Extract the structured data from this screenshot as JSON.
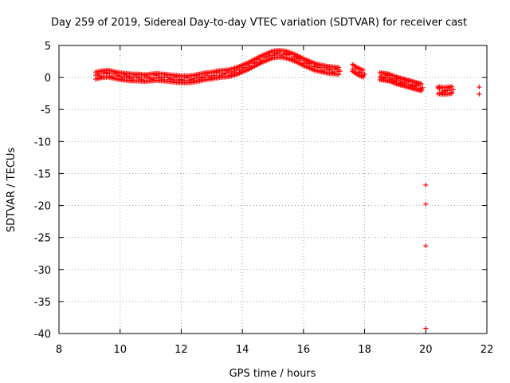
{
  "colors": {
    "series": "#ff0000",
    "grid": "#a0a0a0",
    "axis": "#000000"
  },
  "chart_data": {
    "type": "scatter",
    "title": "Day 259 of 2019, Sidereal Day-to-day VTEC variation (SDTVAR) for receiver cast",
    "xlabel": "GPS time / hours",
    "ylabel": "SDTVAR / TECUs",
    "xlim": [
      8,
      22
    ],
    "ylim": [
      -40,
      5
    ],
    "xticks": [
      8,
      10,
      12,
      14,
      16,
      18,
      20,
      22
    ],
    "yticks": [
      5,
      0,
      -5,
      -10,
      -15,
      -20,
      -25,
      -30,
      -35,
      -40
    ],
    "grid": true,
    "marker": "+",
    "series": [
      {
        "name": "SDTVAR",
        "trace": [
          [
            9.2,
            0.3
          ],
          [
            9.4,
            0.5
          ],
          [
            9.6,
            0.6
          ],
          [
            9.8,
            0.4
          ],
          [
            10.0,
            0.2
          ],
          [
            10.2,
            0.1
          ],
          [
            10.4,
            0.0
          ],
          [
            10.6,
            0.0
          ],
          [
            10.8,
            -0.1
          ],
          [
            11.0,
            0.0
          ],
          [
            11.2,
            0.1
          ],
          [
            11.4,
            0.0
          ],
          [
            11.6,
            -0.1
          ],
          [
            11.8,
            -0.2
          ],
          [
            12.0,
            -0.3
          ],
          [
            12.2,
            -0.3
          ],
          [
            12.4,
            -0.2
          ],
          [
            12.6,
            0.0
          ],
          [
            12.8,
            0.2
          ],
          [
            13.0,
            0.3
          ],
          [
            13.2,
            0.5
          ],
          [
            13.4,
            0.6
          ],
          [
            13.6,
            0.7
          ],
          [
            13.8,
            1.0
          ],
          [
            14.0,
            1.4
          ],
          [
            14.2,
            1.8
          ],
          [
            14.4,
            2.3
          ],
          [
            14.6,
            2.8
          ],
          [
            14.8,
            3.2
          ],
          [
            15.0,
            3.6
          ],
          [
            15.2,
            3.7
          ],
          [
            15.4,
            3.6
          ],
          [
            15.6,
            3.3
          ],
          [
            15.8,
            2.9
          ],
          [
            16.0,
            2.4
          ],
          [
            16.2,
            2.0
          ],
          [
            16.4,
            1.6
          ],
          [
            16.6,
            1.4
          ],
          [
            16.8,
            1.2
          ],
          [
            17.0,
            1.1
          ],
          [
            17.2,
            1.0
          ],
          [
            17.6,
            1.5
          ],
          [
            17.8,
            0.9
          ],
          [
            18.0,
            0.5
          ],
          [
            18.5,
            0.2
          ],
          [
            18.8,
            0.0
          ],
          [
            19.0,
            -0.4
          ],
          [
            19.3,
            -0.8
          ],
          [
            19.6,
            -1.2
          ],
          [
            19.9,
            -1.6
          ],
          [
            20.4,
            -2.0
          ],
          [
            20.6,
            -2.1
          ],
          [
            20.8,
            -2.0
          ],
          [
            20.9,
            -1.9
          ]
        ],
        "scatter_band": 1.0,
        "outliers": [
          [
            20.0,
            -16.8
          ],
          [
            20.0,
            -19.8
          ],
          [
            20.0,
            -26.3
          ],
          [
            20.0,
            -39.2
          ],
          [
            21.75,
            -1.5
          ],
          [
            21.75,
            -2.6
          ]
        ]
      }
    ]
  }
}
